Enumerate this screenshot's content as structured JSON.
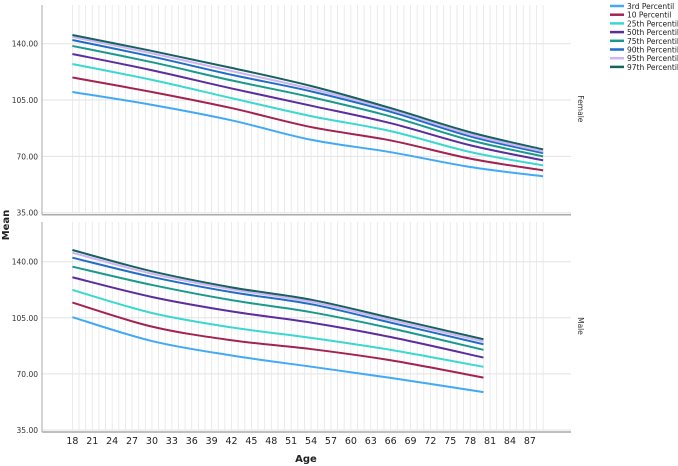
{
  "chart_data": {
    "type": "line",
    "xlabel": "Age",
    "ylabel": "Mean",
    "x_ticks": [
      18,
      21,
      24,
      27,
      30,
      33,
      36,
      39,
      42,
      45,
      48,
      51,
      54,
      57,
      60,
      63,
      66,
      69,
      72,
      75,
      78,
      81,
      84,
      87
    ],
    "y_ticks": [
      "35.00",
      "70.00",
      "105.00",
      "140.00"
    ],
    "ylim": [
      35,
      154
    ],
    "xlim": [
      14,
      92
    ],
    "grid": true,
    "legend_position": "top-right",
    "series_meta": [
      {
        "name": "3rd Percentil",
        "color": "#41a9f5"
      },
      {
        "name": "10 Percentil",
        "color": "#a3224f"
      },
      {
        "name": "25th Percentil",
        "color": "#3ad8cf"
      },
      {
        "name": "50th Percentil",
        "color": "#5b2d9e"
      },
      {
        "name": "75th Percentil",
        "color": "#1a9a8c"
      },
      {
        "name": "90th Percentil",
        "color": "#1f6fc6"
      },
      {
        "name": "95th Percentil",
        "color": "#cfb3f5"
      },
      {
        "name": "97th Percentil",
        "color": "#17625e"
      }
    ],
    "panels": [
      {
        "label": "Female",
        "x": [
          18,
          30,
          42,
          54,
          66,
          78,
          89
        ],
        "series": [
          [
            110,
            102,
            92.4,
            80.3,
            72.6,
            63.4,
            57.6
          ],
          [
            119,
            110,
            100,
            88.2,
            79.9,
            68.6,
            61.3
          ],
          [
            127.4,
            117.5,
            106.2,
            95,
            85.7,
            72.7,
            64.4
          ],
          [
            133.6,
            123.5,
            112.2,
            101.5,
            90.6,
            76.9,
            67.5
          ],
          [
            138.6,
            128.5,
            117.2,
            106.8,
            94.8,
            80,
            70
          ],
          [
            142.3,
            132,
            120.7,
            110.4,
            97.7,
            82.4,
            72
          ],
          [
            144.2,
            134,
            123,
            112,
            99,
            83.6,
            73
          ],
          [
            145.4,
            135.5,
            125,
            113.7,
            100,
            85,
            74.3
          ]
        ]
      },
      {
        "label": "Male",
        "x": [
          18,
          30,
          42,
          54,
          66,
          80
        ],
        "series": [
          [
            105.4,
            90.5,
            81.5,
            74.5,
            67.5,
            58.6
          ],
          [
            114.5,
            99.5,
            91,
            85.5,
            78.5,
            67.7
          ],
          [
            122.4,
            108,
            99,
            92.5,
            85,
            74.4
          ],
          [
            130.3,
            118,
            109,
            102,
            93,
            80.2
          ],
          [
            136.9,
            125.5,
            116,
            108.5,
            98.5,
            85
          ],
          [
            142.5,
            130.5,
            121,
            113.5,
            102,
            88.5
          ],
          [
            145.6,
            132.5,
            122.8,
            115,
            103.6,
            90.2
          ],
          [
            147.3,
            134,
            124,
            116.3,
            105,
            91.6
          ]
        ]
      }
    ]
  }
}
